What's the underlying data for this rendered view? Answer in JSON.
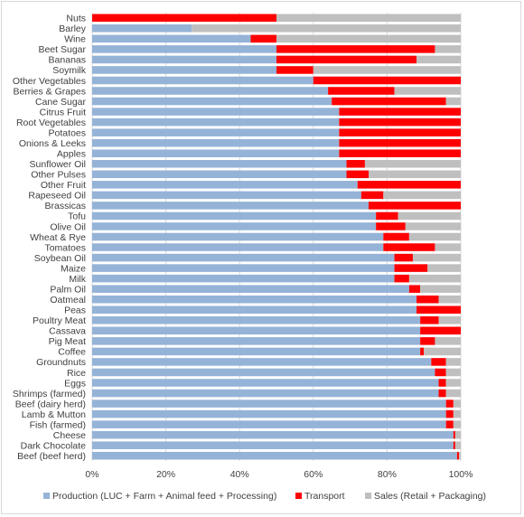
{
  "chart_data": {
    "type": "bar",
    "orientation": "horizontal",
    "stacked": "100%",
    "categories": [
      "Nuts",
      "Barley",
      "Wine",
      "Beet Sugar",
      "Bananas",
      "Soymilk",
      "Other Vegetables",
      "Berries & Grapes",
      "Cane Sugar",
      "Citrus Fruit",
      "Root Vegetables",
      "Potatoes",
      "Onions & Leeks",
      "Apples",
      "Sunflower Oil",
      "Other Pulses",
      "Other Fruit",
      "Rapeseed Oil",
      "Brassicas",
      "Tofu",
      "Olive Oil",
      "Wheat & Rye",
      "Tomatoes",
      "Soybean Oil",
      "Maize",
      "Milk",
      "Palm Oil",
      "Oatmeal",
      "Peas",
      "Poultry Meat",
      "Cassava",
      "Pig Meat",
      "Coffee",
      "Groundnuts",
      "Rice",
      "Eggs",
      "Shrimps (farmed)",
      "Beef (dairy herd)",
      "Lamb & Mutton",
      "Fish (farmed)",
      "Cheese",
      "Dark Chocolate",
      "Beef (beef herd)"
    ],
    "series": [
      {
        "name": "Production (LUC + Farm + Animal feed + Processing)",
        "color": "#95b3d7",
        "values": [
          0,
          27,
          43,
          50,
          50,
          50,
          60,
          64,
          65,
          67,
          67,
          67,
          67,
          67,
          69,
          69,
          72,
          73,
          75,
          77,
          77,
          79,
          79,
          82,
          82,
          82,
          86,
          88,
          88,
          89,
          89,
          89,
          89,
          92,
          93,
          94,
          94,
          96,
          96,
          96,
          98,
          98,
          99
        ]
      },
      {
        "name": "Transport",
        "color": "#ff0000",
        "values": [
          50,
          0,
          7,
          43,
          38,
          10,
          40,
          18,
          31,
          33,
          33,
          33,
          33,
          33,
          5,
          6,
          28,
          6,
          25,
          6,
          8,
          7,
          14,
          5,
          9,
          4,
          3,
          6,
          12,
          5,
          11,
          4,
          1,
          4,
          3,
          2,
          2,
          2,
          2,
          2,
          0.5,
          0.5,
          0.5
        ]
      },
      {
        "name": "Sales (Retail + Packaging)",
        "color": "#bfbfbf",
        "values": [
          50,
          73,
          50,
          7,
          12,
          40,
          0,
          18,
          4,
          0,
          0,
          0,
          0,
          0,
          26,
          25,
          0,
          21,
          0,
          17,
          15,
          14,
          7,
          13,
          9,
          14,
          11,
          6,
          0,
          6,
          0,
          7,
          10,
          4,
          4,
          4,
          4,
          2,
          2,
          2,
          1.5,
          1.5,
          0.5
        ]
      }
    ],
    "xlim": [
      0,
      100
    ],
    "xticks": [
      "0%",
      "20%",
      "40%",
      "60%",
      "80%",
      "100%"
    ],
    "xlabel": "",
    "ylabel": "",
    "title": "",
    "grid": "vertical",
    "legend_position": "bottom"
  }
}
